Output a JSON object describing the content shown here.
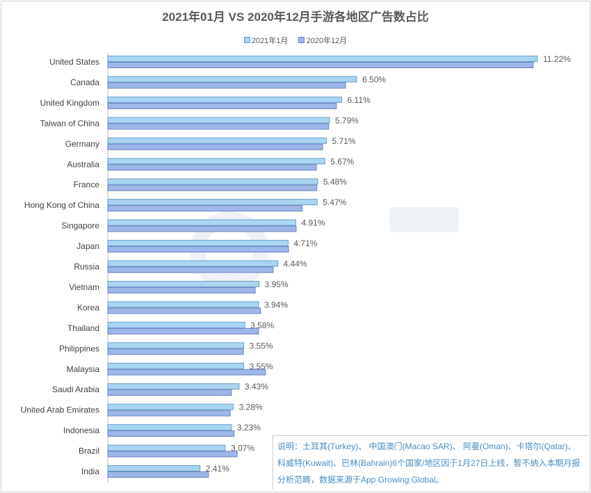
{
  "chart_data": {
    "type": "bar",
    "orientation": "horizontal",
    "title": "2021年01月 VS 2020年12月手游各地区广告数占比",
    "categories": [
      "United States",
      "Canada",
      "United Kingdom",
      "Taiwan of China",
      "Germany",
      "Australia",
      "France",
      "Hong Kong of China",
      "Singapore",
      "Japan",
      "Russia",
      "Vietnam",
      "Korea",
      "Thailand",
      "Philippines",
      "Malaysia",
      "Saudi Arabia",
      "United Arab Emirates",
      "Indonesia",
      "Brazil",
      "India"
    ],
    "series": [
      {
        "name": "2021年1月",
        "color": "#a9d5f2",
        "border": "#6b9fc6",
        "labeled": true,
        "values": [
          11.22,
          6.5,
          6.11,
          5.79,
          5.71,
          5.67,
          5.48,
          5.47,
          4.91,
          4.71,
          4.44,
          3.95,
          3.94,
          3.58,
          3.55,
          3.55,
          3.43,
          3.28,
          3.23,
          3.07,
          2.41
        ],
        "labels": [
          "11.22%",
          "6.50%",
          "6.11%",
          "5.79%",
          "5.71%",
          "5.67%",
          "5.48%",
          "5.47%",
          "4.91%",
          "4.71%",
          "4.44%",
          "3.95%",
          "3.94%",
          "3.58%",
          "3.55%",
          "3.55%",
          "3.43%",
          "3.28%",
          "3.23%",
          "3.07%",
          "2.41%"
        ]
      },
      {
        "name": "2020年12月",
        "color": "#9fb6ea",
        "border": "#6d82c0",
        "labeled": false,
        "values": [
          11.11,
          6.21,
          5.97,
          5.77,
          5.61,
          5.45,
          5.46,
          5.08,
          4.92,
          4.72,
          4.32,
          3.85,
          3.99,
          3.94,
          3.54,
          4.12,
          3.23,
          3.2,
          3.3,
          3.38,
          2.63
        ]
      }
    ],
    "xlim": [
      0,
      11.5
    ],
    "grid": false,
    "legend_position": "top"
  },
  "note": "说明：土耳其(Turkey)、 中国澳门(Macao SAR)、 阿曼(Oman)、卡塔尔(Qatar)、科威特(Kuwait)、巴林(Bahrain)6个国家/地区因于1月27日上线，暂不纳入本期月报分析范畴，数据来源于App Growing Global。",
  "watermark": "App Growing Global"
}
